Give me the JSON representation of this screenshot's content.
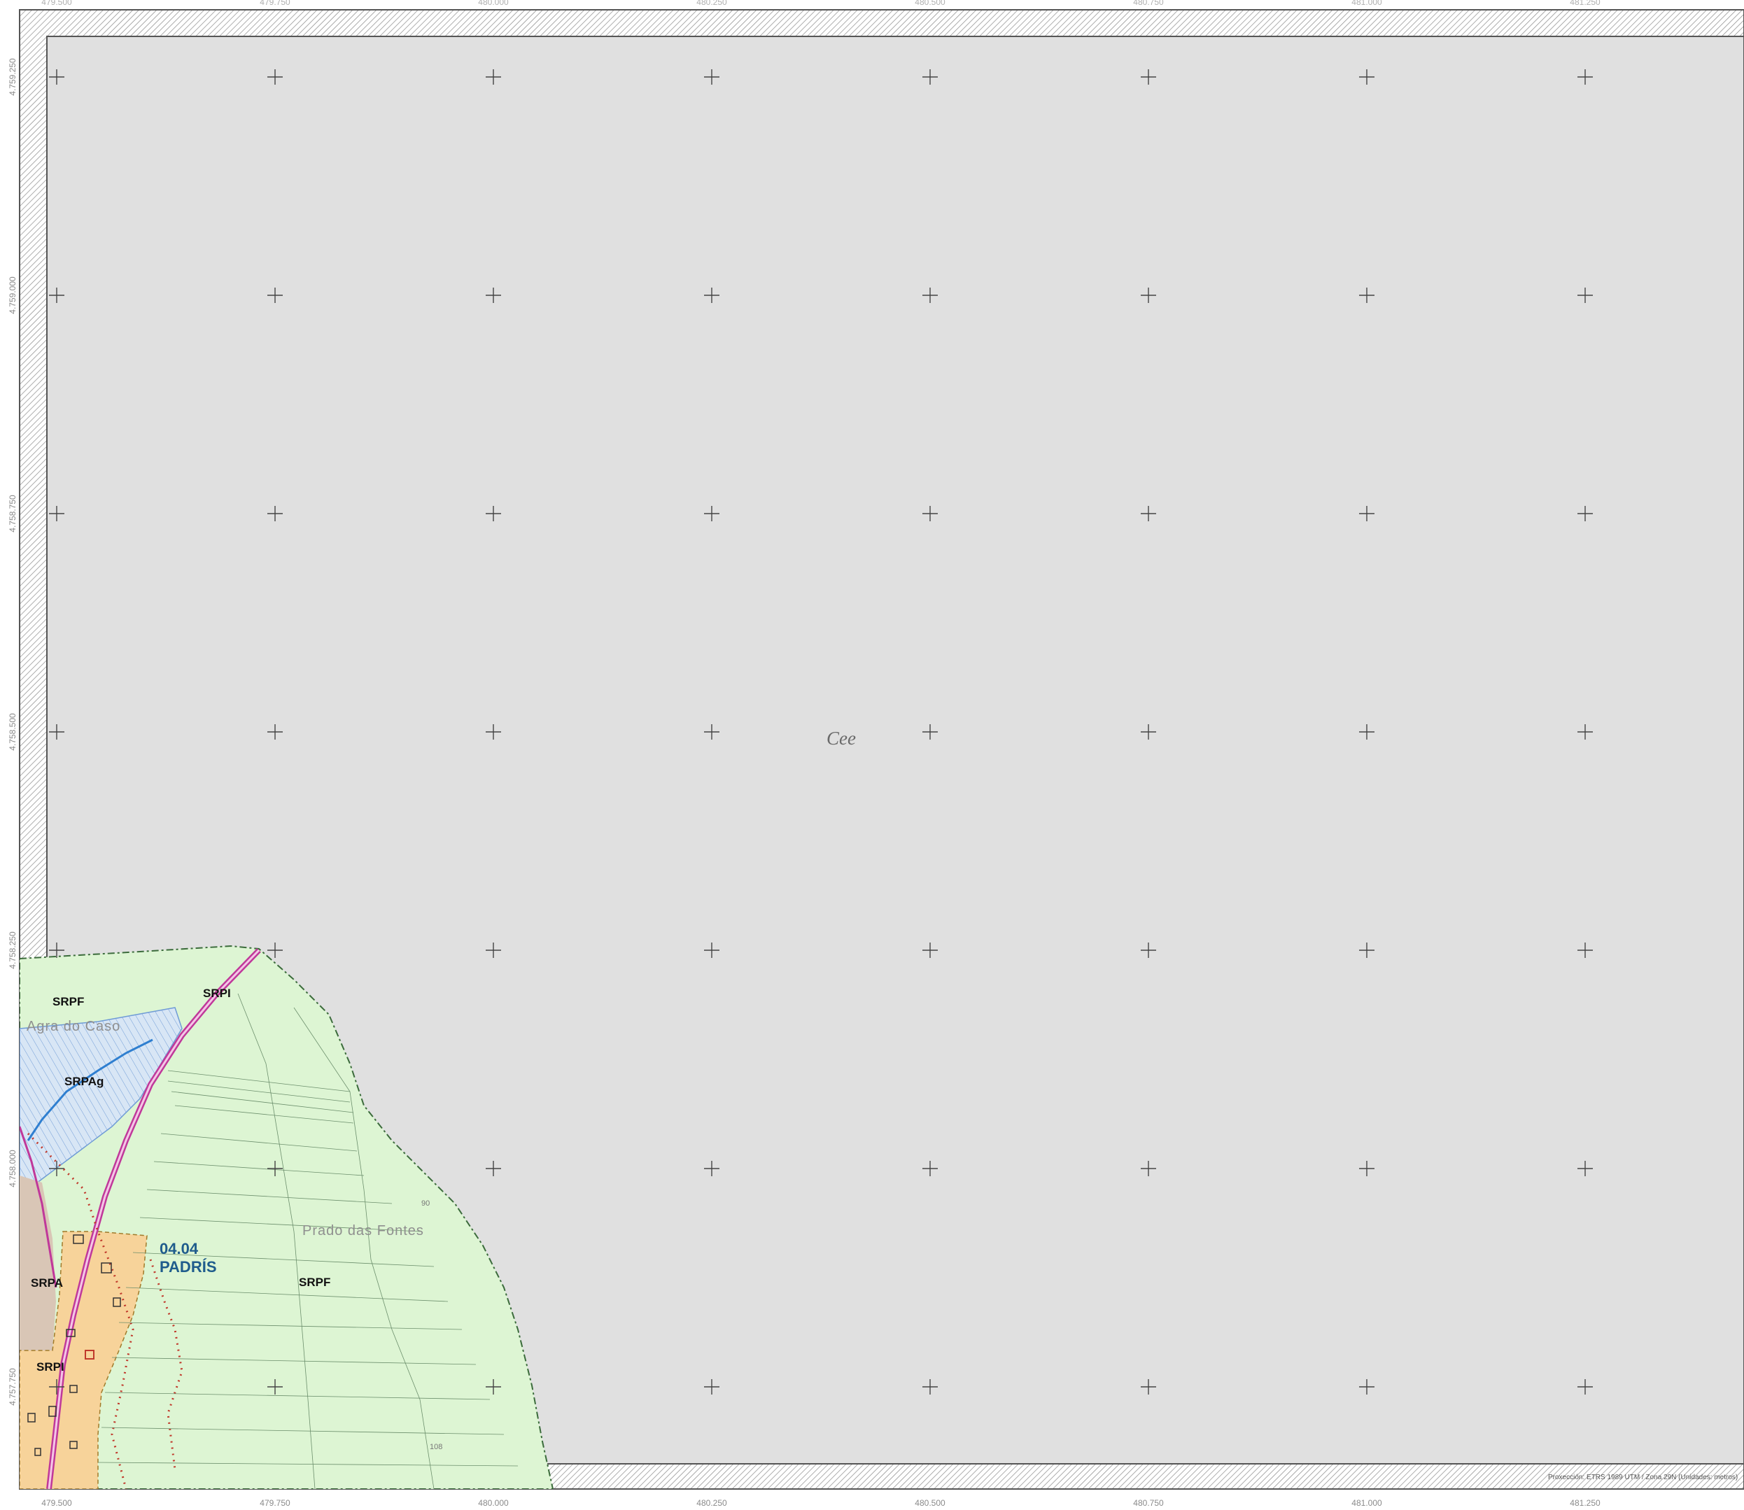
{
  "map": {
    "municipality_label": "Cee",
    "parish": {
      "code": "04.04",
      "name": "PADRÍS"
    },
    "zone_labels": {
      "srpf_north": "SRPF",
      "srpi_north": "SRPI",
      "srpag": "SRPAg",
      "srpa": "SRPA",
      "srpi_south": "SRPI",
      "srpf_south": "SRPF"
    },
    "place_names": {
      "agra": "Agra do Caso",
      "prado": "Prado das Fontes"
    },
    "contour_values": [
      "90",
      "108"
    ],
    "projection_note": "Proxección: ETRS 1989 UTM / Zona 29N (Unidades: metros)",
    "x_ticks": [
      "479.500",
      "479.750",
      "480.000",
      "480.250",
      "480.500",
      "480.750",
      "481.000",
      "481.250"
    ],
    "y_ticks": [
      "4.759.250",
      "4.759.000",
      "4.758.750",
      "4.758.500",
      "4.758.250",
      "4.758.000",
      "4.757.750"
    ],
    "colors": {
      "background_gray": "#e0e0e0",
      "forest_green": "#ddf5d3",
      "agricultural_blue": "#d8e6f5",
      "settlement_orange": "#f7d39a",
      "infrastructure_magenta": "#c0389a",
      "heritage_red": "#c0392b",
      "parish_label_blue": "#1f5c8c"
    }
  }
}
